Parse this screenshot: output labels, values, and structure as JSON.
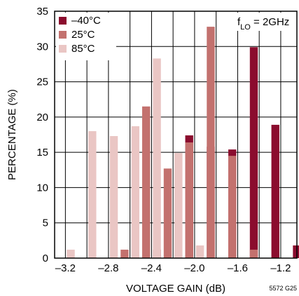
{
  "chart_data": {
    "type": "bar",
    "xlabel": "VOLTAGE GAIN (dB)",
    "ylabel": "PERCENTAGE (%)",
    "xlim": [
      -3.3,
      -1.05
    ],
    "ylim": [
      0,
      35
    ],
    "x_ticks": [
      -3.2,
      -2.8,
      -2.4,
      -2.0,
      -1.6,
      -1.2
    ],
    "x_tick_labels": [
      "–3.2",
      "–2.8",
      "–2.4",
      "–2.0",
      "–1.6",
      "–1.2"
    ],
    "y_ticks": [
      0,
      5,
      10,
      15,
      20,
      25,
      30,
      35
    ],
    "grid": true,
    "legend_position": "top-left",
    "annotation": "f_LO = 2GHz",
    "annotation_main": "f",
    "annotation_sub": "LO",
    "annotation_rest": " = 2GHz",
    "figure_code": "5572 G25",
    "bin_width": 0.1,
    "series": [
      {
        "name": "–40°C",
        "color": "#8b0c2e",
        "x": [
          -2.35,
          -2.05,
          -1.85,
          -1.65,
          -1.45,
          -1.25,
          -1.05
        ],
        "values": [
          1.2,
          17.4,
          15.8,
          15.4,
          29.9,
          18.9,
          1.8
        ]
      },
      {
        "name": "25°C",
        "color": "#c3716e",
        "x": [
          -2.65,
          -2.45,
          -2.25,
          -2.05,
          -1.85,
          -1.65,
          -1.45
        ],
        "values": [
          1.2,
          21.5,
          12.7,
          16.4,
          32.8,
          14.5,
          1.2
        ]
      },
      {
        "name": "85°C",
        "color": "#eac6c4",
        "x": [
          -3.15,
          -2.95,
          -2.75,
          -2.55,
          -2.35,
          -2.15,
          -1.95
        ],
        "values": [
          1.2,
          18.0,
          17.3,
          18.7,
          28.3,
          14.9,
          1.8
        ]
      }
    ]
  }
}
